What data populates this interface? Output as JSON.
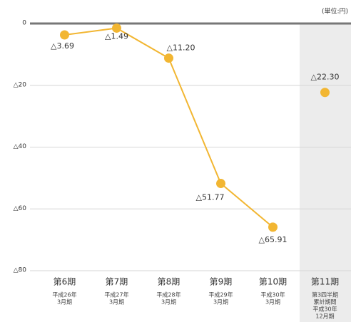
{
  "chart_data": {
    "type": "line",
    "unit": "(単位:円)",
    "categories": [
      [
        "第6期",
        "平成26年",
        "3月期"
      ],
      [
        "第7期",
        "平成27年",
        "3月期"
      ],
      [
        "第8期",
        "平成28年",
        "3月期"
      ],
      [
        "第9期",
        "平成29年",
        "3月期"
      ],
      [
        "第10期",
        "平成30年",
        "3月期"
      ],
      [
        "第11期",
        "第3四半期",
        "累計期間",
        "平成30年",
        "12月期"
      ]
    ],
    "series": [
      {
        "color": "#f2b632",
        "values": [
          -3.69,
          -1.49,
          -11.2,
          -51.77,
          -65.91,
          null
        ],
        "value_labels": [
          "△3.69",
          "△1.49",
          "△11.20",
          "△51.77",
          "△65.91",
          null
        ]
      },
      {
        "color": "#f2b632",
        "values": [
          null,
          null,
          null,
          null,
          null,
          -22.3
        ],
        "value_labels": [
          null,
          null,
          null,
          null,
          null,
          "△22.30"
        ]
      }
    ],
    "ylim": [
      -80,
      0
    ],
    "yticks": [
      0,
      {
        "value": -20,
        "label": "△20"
      },
      {
        "value": -40,
        "label": "△40"
      },
      {
        "value": -60,
        "label": "△60"
      },
      {
        "value": -80,
        "label": "△80"
      }
    ],
    "grid": true
  }
}
